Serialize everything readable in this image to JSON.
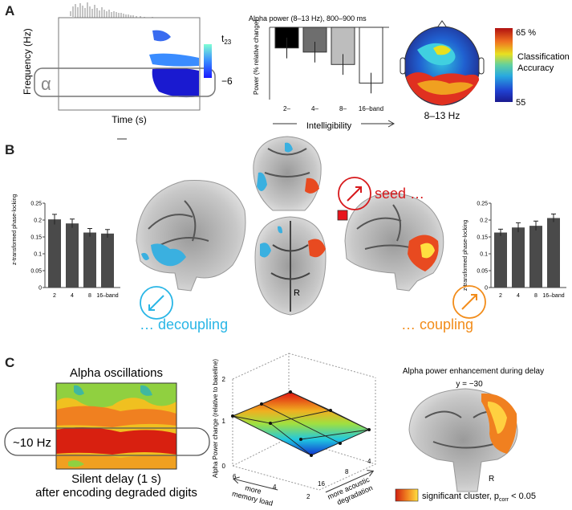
{
  "panels": {
    "a": {
      "letter": "A",
      "spectrogram": {
        "ylabel": "Frequency (Hz)",
        "xlabel": "Time (s)",
        "band_symbol": "α",
        "cbar_top": "t",
        "cbar_top_sub": "23",
        "cbar_bottom": "−6",
        "colors": {
          "cbar_top": "#7fffd4",
          "cbar_bottom": "#1a1aff"
        }
      },
      "alpha_bars": {
        "chart_data": {
          "type": "bar",
          "title": "Alpha power (8–13 Hz), 800–900 ms",
          "ylabel": "Power (% relative change)",
          "xlabel": "Intelligibility",
          "categories": [
            "2–",
            "4–",
            "8–",
            "16–band"
          ],
          "values": [
            -10,
            -12,
            -18,
            -27
          ],
          "errors": [
            5,
            5,
            5,
            5
          ],
          "ylim": [
            -35,
            0
          ],
          "colors": [
            "#000000",
            "#6e6e6e",
            "#bdbdbd",
            "#ffffff"
          ]
        }
      },
      "topomap": {
        "band_label": "8–13 Hz",
        "cbar_top": "65 %",
        "cbar_bottom": "55",
        "cbar_label_1": "Classification",
        "cbar_label_2": "Accuracy"
      }
    },
    "b": {
      "letter": "B",
      "left_bars": {
        "chart_data": {
          "type": "bar",
          "ylabel": "z-transformed phase-locking",
          "categories": [
            "2",
            "4",
            "8",
            "16–band"
          ],
          "values": [
            0.202,
            0.19,
            0.163,
            0.16
          ],
          "errors": [
            0.015,
            0.013,
            0.012,
            0.012
          ],
          "ylim": [
            0,
            0.25
          ],
          "yticks": [
            "0",
            "0.05",
            "0.1",
            "0.15",
            "0.2",
            "0.25"
          ]
        }
      },
      "right_bars": {
        "chart_data": {
          "type": "bar",
          "ylabel": "z-transformed phase-locking",
          "categories": [
            "2",
            "4",
            "8",
            "16–band"
          ],
          "values": [
            0.163,
            0.178,
            0.183,
            0.206
          ],
          "errors": [
            0.01,
            0.014,
            0.014,
            0.012
          ],
          "ylim": [
            0,
            0.25
          ],
          "yticks": [
            "0",
            "0.05",
            "0.1",
            "0.15",
            "0.2",
            "0.25"
          ]
        }
      },
      "seed_label": "seed …",
      "decoupling_label": "… decoupling",
      "coupling_label": "… coupling",
      "hemisphere": "R",
      "colors": {
        "seed": "#d7191c",
        "decoupling": "#29b6e6",
        "coupling": "#f28c1a"
      }
    },
    "c": {
      "letter": "C",
      "heatmap": {
        "title": "Alpha oscillations",
        "band_label": "~10 Hz",
        "caption_1": "Silent delay (1 s)",
        "caption_2": "after encoding degraded digits"
      },
      "surface_plot": {
        "chart_data": {
          "type": "surface",
          "zlabel": "Alpha Power change (relative to baseline)",
          "xlabel_1": "more",
          "xlabel_2": "memory load",
          "ylabel_1": "more acoustic",
          "ylabel_2": "degradation",
          "memory_load_ticks": [
            "6",
            "4",
            "2"
          ],
          "degradation_ticks": [
            "16",
            "8",
            "4"
          ],
          "z_ticks": [
            "0",
            "1",
            "2"
          ],
          "zlim": [
            0,
            2
          ]
        }
      },
      "coronal": {
        "title": "Alpha power enhancement during delay",
        "coordinate": "y = −30",
        "hemisphere": "R",
        "legend_prefix": "significant cluster, p",
        "legend_sub": "corr",
        "legend_suffix": " < 0.05"
      }
    }
  }
}
